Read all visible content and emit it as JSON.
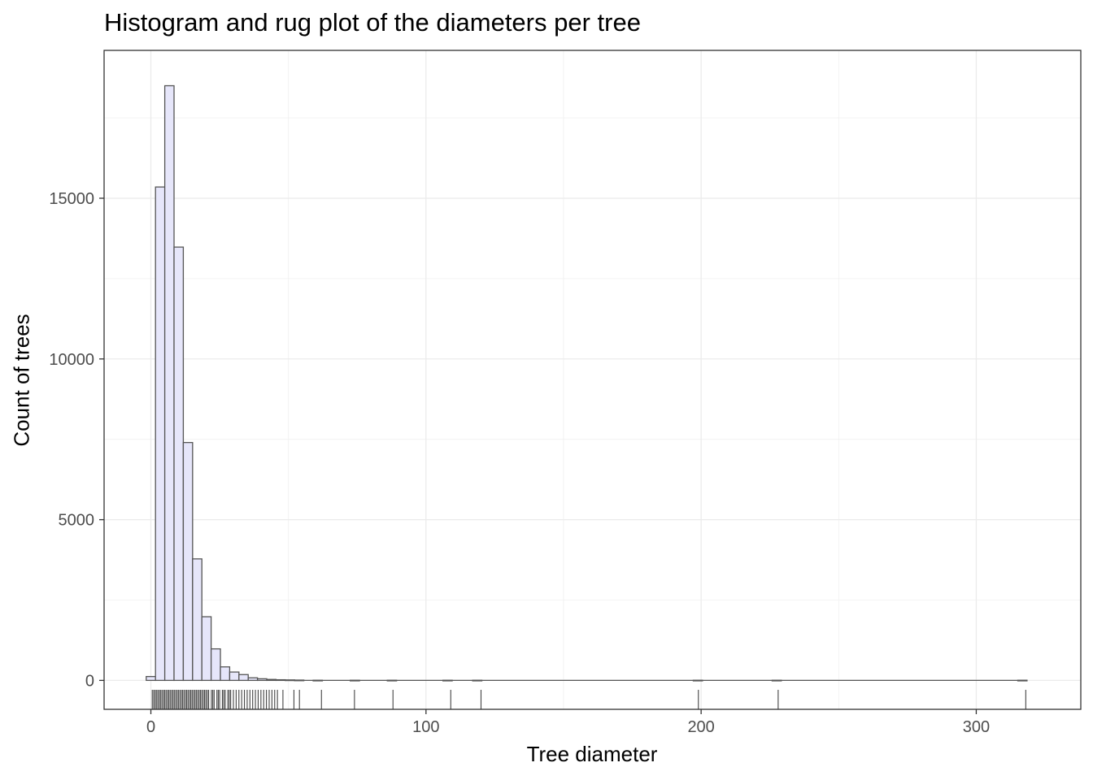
{
  "chart_data": {
    "type": "histogram",
    "title": "Histogram and rug plot of the diameters per tree",
    "xlabel": "Tree diameter",
    "ylabel": "Count of trees",
    "xlim": [
      -17,
      338
    ],
    "ylim": [
      -900,
      19600
    ],
    "x_ticks": [
      0,
      100,
      200,
      300
    ],
    "y_ticks": [
      0,
      5000,
      10000,
      15000
    ],
    "x_tick_labels": [
      "0",
      "100",
      "200",
      "300"
    ],
    "y_tick_labels": [
      "0",
      "5000",
      "10000",
      "15000"
    ],
    "grid": true,
    "bin_width": 3.37,
    "bins": [
      {
        "x": 0,
        "count": 120
      },
      {
        "x": 3.37,
        "count": 15350
      },
      {
        "x": 6.74,
        "count": 18500
      },
      {
        "x": 10.11,
        "count": 13480
      },
      {
        "x": 13.48,
        "count": 7400
      },
      {
        "x": 16.85,
        "count": 3780
      },
      {
        "x": 20.22,
        "count": 1980
      },
      {
        "x": 23.59,
        "count": 980
      },
      {
        "x": 26.96,
        "count": 420
      },
      {
        "x": 30.33,
        "count": 260
      },
      {
        "x": 33.7,
        "count": 180
      },
      {
        "x": 37.07,
        "count": 80
      },
      {
        "x": 40.44,
        "count": 50
      },
      {
        "x": 43.81,
        "count": 30
      },
      {
        "x": 47.18,
        "count": 20
      },
      {
        "x": 50.55,
        "count": 15
      },
      {
        "x": 53.92,
        "count": 10
      },
      {
        "x": 60.66,
        "count": 5
      },
      {
        "x": 74.14,
        "count": 5
      },
      {
        "x": 87.62,
        "count": 5
      },
      {
        "x": 107.84,
        "count": 5
      },
      {
        "x": 118.63,
        "count": 5
      },
      {
        "x": 198.83,
        "count": 5
      },
      {
        "x": 227.48,
        "count": 5
      },
      {
        "x": 316.78,
        "count": 5
      }
    ],
    "rug": [
      0.5,
      1,
      1.5,
      2,
      2.5,
      3,
      3.5,
      4,
      4.5,
      5,
      5.5,
      6,
      6.5,
      7,
      7.5,
      8,
      8.5,
      9,
      9.5,
      10,
      10.5,
      11,
      11.5,
      12,
      12.5,
      13,
      13.5,
      14,
      14.5,
      15,
      15.5,
      16,
      16.5,
      17,
      17.5,
      18,
      18.5,
      19,
      19.5,
      20,
      20.5,
      21,
      22,
      22.5,
      23,
      24,
      24.5,
      25,
      26,
      26.5,
      27,
      28,
      28.5,
      29,
      30,
      31,
      32,
      33,
      34,
      35,
      36,
      37,
      38,
      39,
      40,
      41,
      42,
      43,
      44,
      45,
      46,
      48,
      52,
      54,
      62,
      74,
      88,
      109,
      120,
      199,
      228,
      318
    ]
  }
}
